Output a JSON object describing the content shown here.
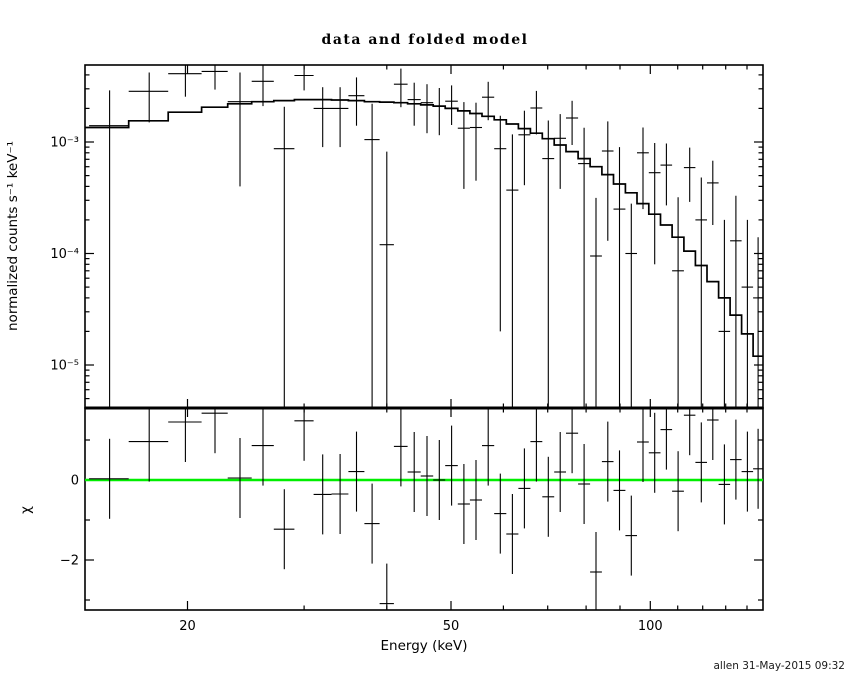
{
  "footer": {
    "timestamp": "allen 31-May-2015 09:32"
  },
  "chart_data": {
    "type": "line",
    "subtype": "spectral-histogram-with-errorbars",
    "title": "data and folded model",
    "xlabel": "Energy (keV)",
    "ylabel_top": "normalized counts s⁻¹ keV⁻¹",
    "ylabel_bottom": "χ",
    "x_scale": "log",
    "x_range": [
      14.0,
      148.0
    ],
    "top_y_scale": "log",
    "top_y_range": [
      4.2e-06,
      0.0049
    ],
    "bottom_y_range": [
      -3.25,
      1.8
    ],
    "grid": false,
    "legend": "none",
    "zero_line_color": "#00ee00",
    "line_color": "#000000",
    "x_major_ticks": [
      {
        "v": 20,
        "label": "20"
      },
      {
        "v": 50,
        "label": "50"
      },
      {
        "v": 100,
        "label": "100"
      }
    ],
    "x_minor_ticks": [
      30,
      40,
      60,
      70,
      80,
      90,
      110,
      120,
      130,
      140
    ],
    "top_y_major_ticks": [
      {
        "v": 0.001,
        "label": "10⁻³"
      },
      {
        "v": 0.0001,
        "label": "10⁻⁴"
      },
      {
        "v": 1e-05,
        "label": "10⁻⁵"
      }
    ],
    "bottom_y_major_ticks": [
      {
        "v": 0,
        "label": "0"
      },
      {
        "v": -2,
        "label": "−2"
      }
    ],
    "bottom_y_minor_ticks": [
      1,
      -1,
      -3
    ],
    "residual_error": 1.0,
    "points_columns": "e=bin center keV, w=bin half-width keV, r=data rate counts/s/keV, re=1-sigma error, m=folded model value, chi=(r-m)/re",
    "points": [
      {
        "e": 15.25,
        "w": 1.05,
        "r": 0.0014,
        "re": 0.0015,
        "m": 0.00135,
        "chi": 0.03
      },
      {
        "e": 17.5,
        "w": 1.2,
        "r": 0.00285,
        "re": 0.00135,
        "m": 0.00155,
        "chi": 0.96
      },
      {
        "e": 19.85,
        "w": 1.15,
        "r": 0.0041,
        "re": 0.00155,
        "m": 0.00185,
        "chi": 1.45
      },
      {
        "e": 22.0,
        "w": 1.0,
        "r": 0.0043,
        "re": 0.00135,
        "m": 0.00205,
        "chi": 1.67
      },
      {
        "e": 24.0,
        "w": 1.0,
        "r": 0.0023,
        "re": 0.0019,
        "m": 0.0022,
        "chi": 0.05
      },
      {
        "e": 26.0,
        "w": 1.0,
        "r": 0.0035,
        "re": 0.0014,
        "m": 0.0023,
        "chi": 0.86
      },
      {
        "e": 28.0,
        "w": 1.0,
        "r": 0.00087,
        "re": 0.0012,
        "m": 0.00235,
        "chi": -1.23
      },
      {
        "e": 30.0,
        "w": 1.0,
        "r": 0.00395,
        "re": 0.00105,
        "m": 0.0024,
        "chi": 1.48
      },
      {
        "e": 32.0,
        "w": 1.0,
        "r": 0.002,
        "re": 0.0011,
        "m": 0.0024,
        "chi": -0.36
      },
      {
        "e": 34.0,
        "w": 1.0,
        "r": 0.002,
        "re": 0.0011,
        "m": 0.00238,
        "chi": -0.35
      },
      {
        "e": 36.0,
        "w": 1.0,
        "r": 0.0026,
        "re": 0.0012,
        "m": 0.00235,
        "chi": 0.21
      },
      {
        "e": 38.0,
        "w": 1.0,
        "r": 0.00105,
        "re": 0.00115,
        "m": 0.0023,
        "chi": -1.09
      },
      {
        "e": 40.0,
        "w": 1.0,
        "r": 0.00012,
        "re": 0.0007,
        "m": 0.00228,
        "chi": -3.09
      },
      {
        "e": 42.0,
        "w": 1.0,
        "r": 0.0033,
        "re": 0.00125,
        "m": 0.00225,
        "chi": 0.84
      },
      {
        "e": 44.0,
        "w": 1.0,
        "r": 0.0024,
        "re": 0.001,
        "m": 0.0022,
        "chi": 0.2
      },
      {
        "e": 46.0,
        "w": 1.0,
        "r": 0.00225,
        "re": 0.00105,
        "m": 0.00215,
        "chi": 0.1
      },
      {
        "e": 48.0,
        "w": 1.0,
        "r": 0.0021,
        "re": 0.00095,
        "m": 0.0021,
        "chi": 0.0
      },
      {
        "e": 50.1,
        "w": 1.1,
        "r": 0.00232,
        "re": 0.0009,
        "m": 0.002,
        "chi": 0.36
      },
      {
        "e": 52.3,
        "w": 1.1,
        "r": 0.00133,
        "re": 0.00095,
        "m": 0.0019,
        "chi": -0.6
      },
      {
        "e": 54.55,
        "w": 1.15,
        "r": 0.00135,
        "re": 0.0009,
        "m": 0.0018,
        "chi": -0.5
      },
      {
        "e": 56.9,
        "w": 1.2,
        "r": 0.00252,
        "re": 0.00095,
        "m": 0.0017,
        "chi": 0.86
      },
      {
        "e": 59.35,
        "w": 1.25,
        "r": 0.00087,
        "re": 0.00085,
        "m": 0.00158,
        "chi": -0.84
      },
      {
        "e": 61.9,
        "w": 1.3,
        "r": 0.00037,
        "re": 0.0008,
        "m": 0.00145,
        "chi": -1.35
      },
      {
        "e": 64.55,
        "w": 1.35,
        "r": 0.00116,
        "re": 0.00075,
        "m": 0.00132,
        "chi": -0.21
      },
      {
        "e": 67.3,
        "w": 1.4,
        "r": 0.00202,
        "re": 0.00085,
        "m": 0.0012,
        "chi": 0.96
      },
      {
        "e": 70.15,
        "w": 1.45,
        "r": 0.00071,
        "re": 0.00085,
        "m": 0.00107,
        "chi": -0.42
      },
      {
        "e": 73.1,
        "w": 1.5,
        "r": 0.00108,
        "re": 0.0007,
        "m": 0.00094,
        "chi": 0.2
      },
      {
        "e": 76.2,
        "w": 1.6,
        "r": 0.00164,
        "re": 0.0007,
        "m": 0.00082,
        "chi": 1.17
      },
      {
        "e": 79.45,
        "w": 1.65,
        "r": 0.00064,
        "re": 0.0007,
        "m": 0.00071,
        "chi": -0.1
      },
      {
        "e": 82.8,
        "w": 1.7,
        "r": 9.5e-05,
        "re": 0.00022,
        "m": 0.0006,
        "chi": -2.3
      },
      {
        "e": 86.25,
        "w": 1.75,
        "r": 0.00083,
        "re": 0.0007,
        "m": 0.00051,
        "chi": 0.46
      },
      {
        "e": 89.85,
        "w": 1.85,
        "r": 0.00025,
        "re": 0.00065,
        "m": 0.00042,
        "chi": -0.26
      },
      {
        "e": 93.6,
        "w": 1.9,
        "r": 0.0001,
        "re": 0.00018,
        "m": 0.00035,
        "chi": -1.39
      },
      {
        "e": 97.5,
        "w": 2.0,
        "r": 0.0008,
        "re": 0.00055,
        "m": 0.00028,
        "chi": 0.95
      },
      {
        "e": 101.55,
        "w": 2.05,
        "r": 0.00053,
        "re": 0.00045,
        "m": 0.000225,
        "chi": 0.68
      },
      {
        "e": 105.75,
        "w": 2.15,
        "r": 0.00062,
        "re": 0.00035,
        "m": 0.00018,
        "chi": 1.26
      },
      {
        "e": 110.15,
        "w": 2.25,
        "r": 7e-05,
        "re": 0.00025,
        "m": 0.00014,
        "chi": -0.28
      },
      {
        "e": 114.7,
        "w": 2.3,
        "r": 0.00059,
        "re": 0.0003,
        "m": 0.000105,
        "chi": 1.62
      },
      {
        "e": 119.4,
        "w": 2.4,
        "r": 0.0002,
        "re": 0.00028,
        "m": 7.8e-05,
        "chi": 0.44
      },
      {
        "e": 124.3,
        "w": 2.5,
        "r": 0.00043,
        "re": 0.00025,
        "m": 5.6e-05,
        "chi": 1.5
      },
      {
        "e": 129.4,
        "w": 2.6,
        "r": 2e-05,
        "re": 0.00018,
        "m": 4e-05,
        "chi": -0.11
      },
      {
        "e": 134.7,
        "w": 2.7,
        "r": 0.00013,
        "re": 0.0002,
        "m": 2.8e-05,
        "chi": 0.51
      },
      {
        "e": 140.2,
        "w": 2.8,
        "r": 5e-05,
        "re": 0.00015,
        "m": 1.9e-05,
        "chi": 0.21
      },
      {
        "e": 145.5,
        "w": 2.5,
        "r": 4e-05,
        "re": 0.0001,
        "m": 1.2e-05,
        "chi": 0.28
      }
    ]
  }
}
